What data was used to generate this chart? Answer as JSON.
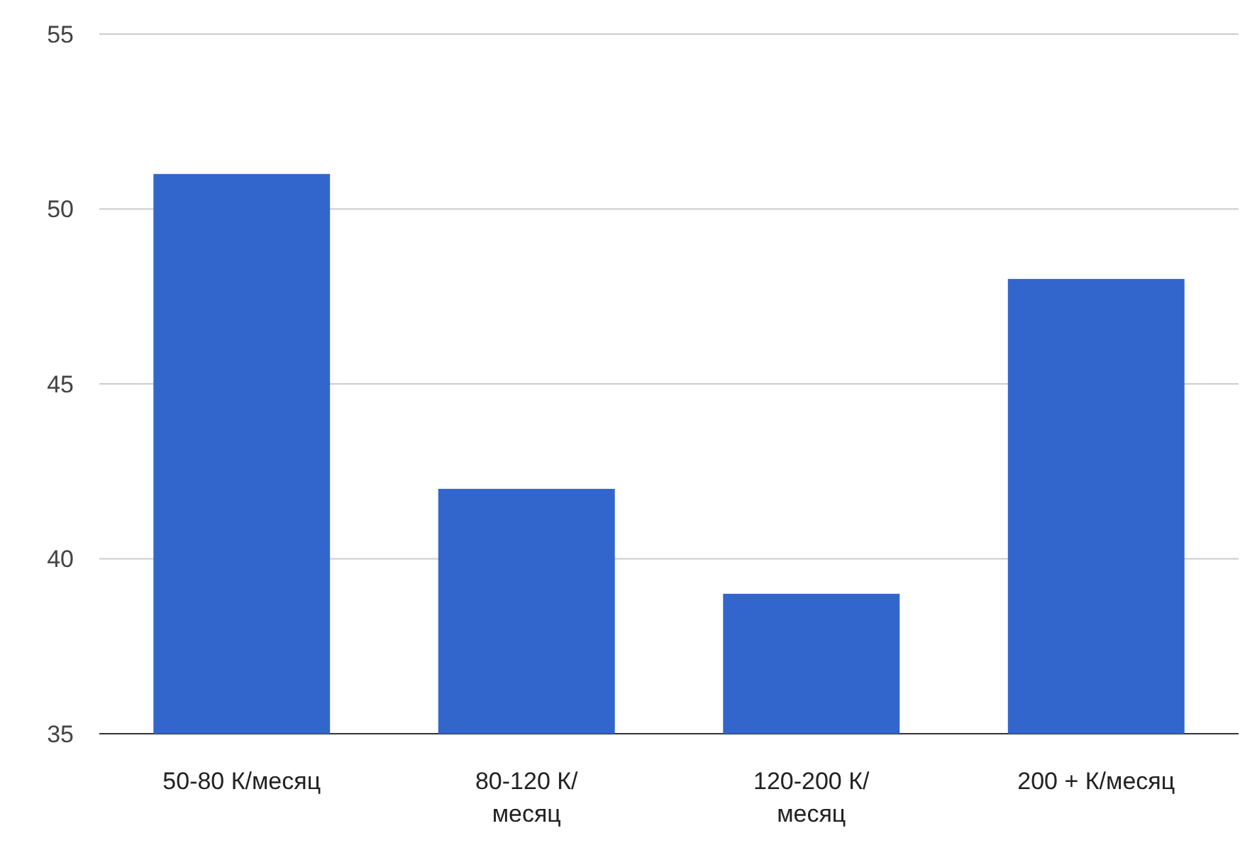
{
  "chart_data": {
    "type": "bar",
    "categories": [
      "50-80 К/месяц",
      "80-120 К/месяц",
      "120-200 К/месяц",
      "200 + К/месяц"
    ],
    "values": [
      51,
      42,
      39,
      48
    ],
    "color": "#3366cc",
    "ylim": [
      35,
      55
    ],
    "yticks": [
      35,
      40,
      45,
      50,
      55
    ],
    "grid": "y"
  }
}
